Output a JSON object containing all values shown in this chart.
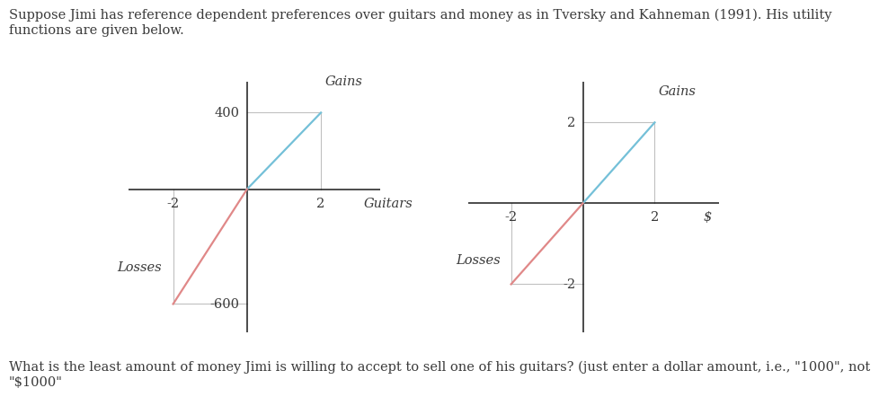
{
  "title_text": "Suppose Jimi has reference dependent preferences over guitars and money as in Tversky and Kahneman (1991). His utility\nfunctions are given below.",
  "bottom_text": "What is the least amount of money Jimi is willing to accept to sell one of his guitars? (just enter a dollar amount, i.e., \"1000\", not\n\"$1000\"",
  "chart1": {
    "xlabel": "Guitars",
    "x_tick_pos": 2,
    "x_tick_neg": -2,
    "y_tick_pos": 400,
    "y_tick_neg": -600,
    "gains_line": {
      "x": [
        0,
        2
      ],
      "y": [
        0,
        400
      ]
    },
    "losses_line": {
      "x": [
        0,
        -2
      ],
      "y": [
        0,
        -600
      ]
    },
    "ref_x_pos": 2,
    "ref_y_pos": 400,
    "ref_x_neg": -2,
    "ref_y_neg": -600,
    "gains_label": "Gains",
    "losses_label": "Losses",
    "gains_color": "#74c0d8",
    "losses_color": "#e08888",
    "xlim": [
      -3.2,
      3.6
    ],
    "ylim": [
      -750,
      560
    ]
  },
  "chart2": {
    "xlabel": "$",
    "x_tick_pos": 2,
    "x_tick_neg": -2,
    "y_tick_pos": 2,
    "y_tick_neg": -2,
    "gains_line": {
      "x": [
        0,
        2
      ],
      "y": [
        0,
        2
      ]
    },
    "losses_line": {
      "x": [
        0,
        -2
      ],
      "y": [
        0,
        -2
      ]
    },
    "ref_x_pos": 2,
    "ref_y_pos": 2,
    "ref_x_neg": -2,
    "ref_y_neg": -2,
    "gains_label": "Gains",
    "losses_label": "Losses",
    "gains_color": "#74c0d8",
    "losses_color": "#e08888",
    "xlim": [
      -3.2,
      3.8
    ],
    "ylim": [
      -3.2,
      3.0
    ]
  },
  "font_color": "#3a3a3a",
  "font_size_text": 10.5,
  "font_size_tick": 10.5,
  "font_size_label": 10.5,
  "bg_color": "#ffffff"
}
